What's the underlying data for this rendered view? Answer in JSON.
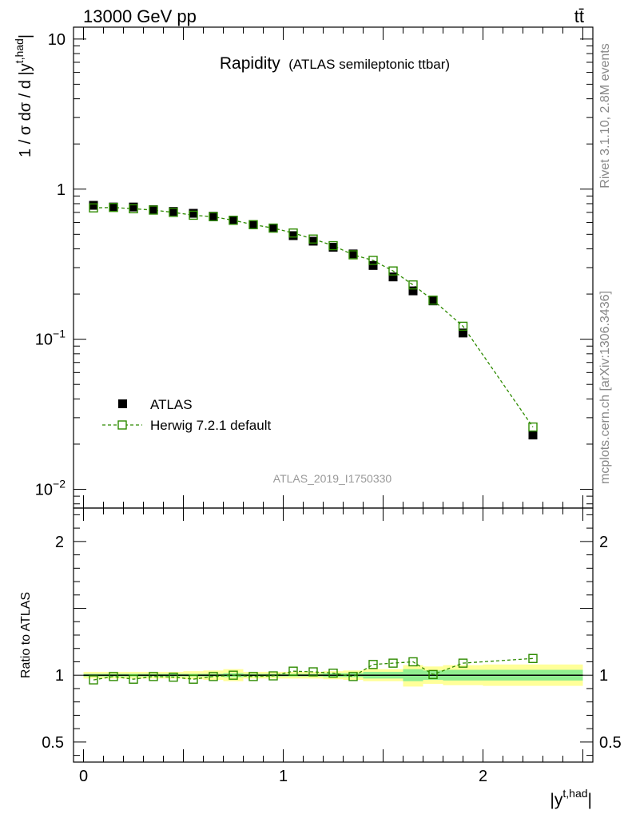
{
  "header": {
    "left": "13000 GeV pp",
    "right": "tt̄"
  },
  "side_labels": {
    "top": "Rivet 3.1.10,  2.8M events",
    "bottom": "mcplots.cern.ch [arXiv:1306.3436]"
  },
  "colors": {
    "data": "#000000",
    "mc": "#2e8b00",
    "band_total": "#ffff99",
    "band_stat": "#90ee90",
    "axis": "#000000",
    "analysis_label": "#999999"
  },
  "chart_data": [
    {
      "type": "scatter",
      "panel": "main",
      "title": "Rapidity",
      "subtitle": "(ATLAS semileptonic ttbar)",
      "analysis_label": "ATLAS_2019_I1750330",
      "ylabel": "1 / σ dσ / d |y^{t,had}|",
      "ylabel_main": "1 / σ dσ / d |y",
      "ylabel_sup": "t,had",
      "ylabel_end": "|",
      "yscale": "log",
      "ylim": [
        0.0075,
        12
      ],
      "xlim": [
        -0.05,
        2.55
      ],
      "yticks": [
        {
          "value": 10,
          "base": "10",
          "exp": ""
        },
        {
          "value": 1,
          "base": "1",
          "exp": ""
        },
        {
          "value": 0.1,
          "base": "10",
          "exp": "−1"
        },
        {
          "value": 0.01,
          "base": "10",
          "exp": "−2"
        }
      ],
      "legend": {
        "position": "lower-left"
      },
      "series": [
        {
          "name": "ATLAS",
          "marker": "filled-square",
          "x": [
            0.05,
            0.15,
            0.25,
            0.35,
            0.45,
            0.55,
            0.65,
            0.75,
            0.85,
            0.95,
            1.05,
            1.15,
            1.25,
            1.35,
            1.45,
            1.55,
            1.65,
            1.75,
            1.9,
            2.25
          ],
          "y": [
            0.78,
            0.76,
            0.76,
            0.73,
            0.71,
            0.69,
            0.66,
            0.62,
            0.58,
            0.55,
            0.49,
            0.45,
            0.41,
            0.37,
            0.31,
            0.26,
            0.21,
            0.18,
            0.11,
            0.023
          ]
        },
        {
          "name": "Herwig 7.2.1 default",
          "marker": "open-square",
          "line": "dashed",
          "x": [
            0.05,
            0.15,
            0.25,
            0.35,
            0.45,
            0.55,
            0.65,
            0.75,
            0.85,
            0.95,
            1.05,
            1.15,
            1.25,
            1.35,
            1.45,
            1.55,
            1.65,
            1.75,
            1.9,
            2.25
          ],
          "y": [
            0.75,
            0.755,
            0.74,
            0.725,
            0.7,
            0.67,
            0.655,
            0.62,
            0.58,
            0.55,
            0.51,
            0.465,
            0.42,
            0.365,
            0.335,
            0.285,
            0.23,
            0.182,
            0.122,
            0.026
          ]
        }
      ]
    },
    {
      "type": "scatter",
      "panel": "ratio",
      "ylabel": "Ratio to ATLAS",
      "xlabel": "|y^{t,had}|",
      "xlabel_main": "|y",
      "xlabel_sup": "t,had",
      "xlabel_end": "|",
      "ylim": [
        0.35,
        2.25
      ],
      "xlim": [
        -0.05,
        2.55
      ],
      "yticks": [
        {
          "value": 2,
          "label": "2"
        },
        {
          "value": 1,
          "label": "1"
        },
        {
          "value": 0.5,
          "label": "0.5"
        }
      ],
      "xticks": [
        {
          "value": 0,
          "label": "0"
        },
        {
          "value": 1,
          "label": "1"
        },
        {
          "value": 2,
          "label": "2"
        }
      ],
      "bands": [
        {
          "x0": 0.0,
          "x1": 0.1,
          "total": [
            0.975,
            1.025
          ],
          "stat": [
            0.99,
            1.01
          ]
        },
        {
          "x0": 0.1,
          "x1": 0.2,
          "total": [
            0.975,
            1.025
          ],
          "stat": [
            0.99,
            1.01
          ]
        },
        {
          "x0": 0.2,
          "x1": 0.3,
          "total": [
            0.975,
            1.025
          ],
          "stat": [
            0.99,
            1.01
          ]
        },
        {
          "x0": 0.3,
          "x1": 0.4,
          "total": [
            0.975,
            1.025
          ],
          "stat": [
            0.99,
            1.01
          ]
        },
        {
          "x0": 0.4,
          "x1": 0.5,
          "total": [
            0.975,
            1.025
          ],
          "stat": [
            0.99,
            1.01
          ]
        },
        {
          "x0": 0.5,
          "x1": 0.6,
          "total": [
            0.97,
            1.03
          ],
          "stat": [
            0.99,
            1.01
          ]
        },
        {
          "x0": 0.6,
          "x1": 0.7,
          "total": [
            0.965,
            1.035
          ],
          "stat": [
            0.99,
            1.01
          ]
        },
        {
          "x0": 0.7,
          "x1": 0.8,
          "total": [
            0.955,
            1.045
          ],
          "stat": [
            0.985,
            1.015
          ]
        },
        {
          "x0": 0.8,
          "x1": 0.9,
          "total": [
            0.975,
            1.025
          ],
          "stat": [
            0.99,
            1.01
          ]
        },
        {
          "x0": 0.9,
          "x1": 1.0,
          "total": [
            0.975,
            1.025
          ],
          "stat": [
            0.99,
            1.01
          ]
        },
        {
          "x0": 1.0,
          "x1": 1.1,
          "total": [
            0.975,
            1.025
          ],
          "stat": [
            0.99,
            1.01
          ]
        },
        {
          "x0": 1.1,
          "x1": 1.2,
          "total": [
            0.975,
            1.025
          ],
          "stat": [
            0.99,
            1.01
          ]
        },
        {
          "x0": 1.2,
          "x1": 1.3,
          "total": [
            0.97,
            1.03
          ],
          "stat": [
            0.985,
            1.015
          ]
        },
        {
          "x0": 1.3,
          "x1": 1.4,
          "total": [
            0.965,
            1.035
          ],
          "stat": [
            0.985,
            1.015
          ]
        },
        {
          "x0": 1.4,
          "x1": 1.5,
          "total": [
            0.955,
            1.045
          ],
          "stat": [
            0.975,
            1.025
          ]
        },
        {
          "x0": 1.5,
          "x1": 1.6,
          "total": [
            0.955,
            1.045
          ],
          "stat": [
            0.975,
            1.025
          ]
        },
        {
          "x0": 1.6,
          "x1": 1.7,
          "total": [
            0.915,
            1.075
          ],
          "stat": [
            0.955,
            1.045
          ]
        },
        {
          "x0": 1.7,
          "x1": 1.8,
          "total": [
            0.935,
            1.065
          ],
          "stat": [
            0.965,
            1.035
          ]
        },
        {
          "x0": 1.8,
          "x1": 2.0,
          "total": [
            0.925,
            1.075
          ],
          "stat": [
            0.96,
            1.04
          ]
        },
        {
          "x0": 2.0,
          "x1": 2.5,
          "total": [
            0.92,
            1.08
          ],
          "stat": [
            0.96,
            1.04
          ]
        }
      ],
      "series": [
        {
          "name": "Herwig 7.2.1 default",
          "marker": "open-square",
          "line": "dashed",
          "x": [
            0.05,
            0.15,
            0.25,
            0.35,
            0.45,
            0.55,
            0.65,
            0.75,
            0.85,
            0.95,
            1.05,
            1.15,
            1.25,
            1.35,
            1.45,
            1.55,
            1.65,
            1.75,
            1.9,
            2.25
          ],
          "y": [
            0.965,
            0.99,
            0.97,
            0.99,
            0.985,
            0.97,
            0.99,
            1.0,
            0.99,
            0.995,
            1.03,
            1.025,
            1.015,
            0.99,
            1.08,
            1.09,
            1.1,
            1.005,
            1.09,
            1.125
          ]
        }
      ]
    }
  ]
}
